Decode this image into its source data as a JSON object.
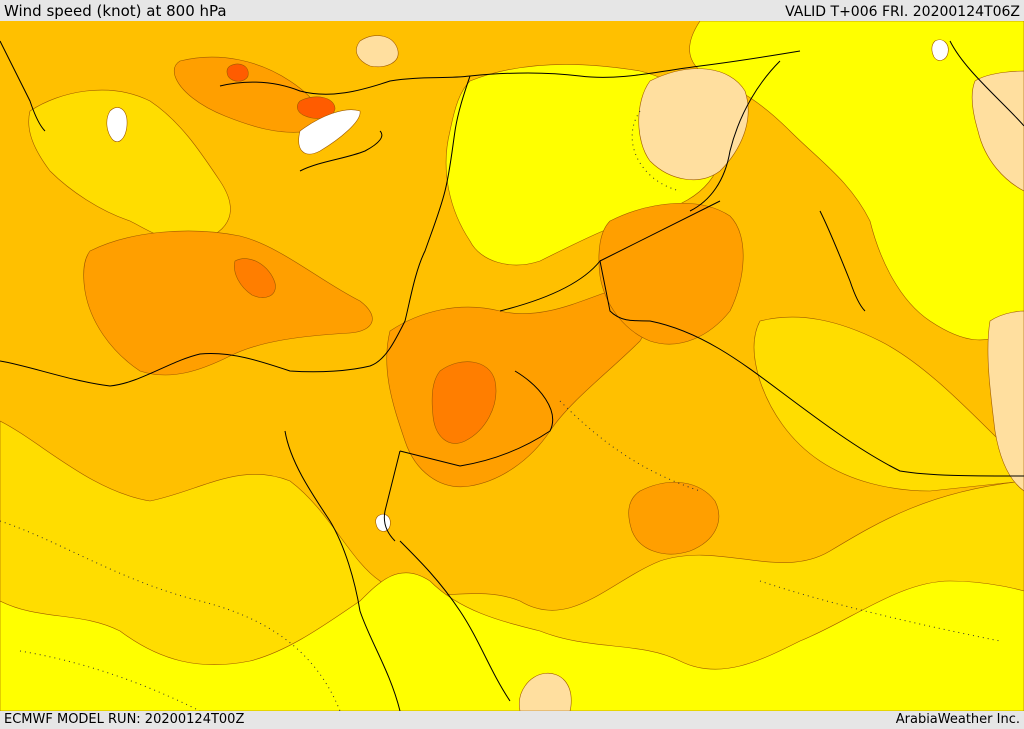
{
  "header": {
    "title": "Wind speed (knot) at 800 hPa",
    "valid": "VALID T+006 FRI. 20200124T06Z"
  },
  "footer": {
    "model_run": "ECMWF MODEL RUN: 20200124T00Z",
    "credit": "ArabiaWeather Inc."
  },
  "map": {
    "palette": {
      "orange_light": "#ffc000",
      "orange_mid": "#ff9f00",
      "orange_dark": "#ff7e00",
      "gold": "#ffdd00",
      "yellow": "#ffff00",
      "peach": "#ffdf9f",
      "white": "#ffffff",
      "red_orange": "#ff5c00",
      "coast": "#000000"
    }
  }
}
